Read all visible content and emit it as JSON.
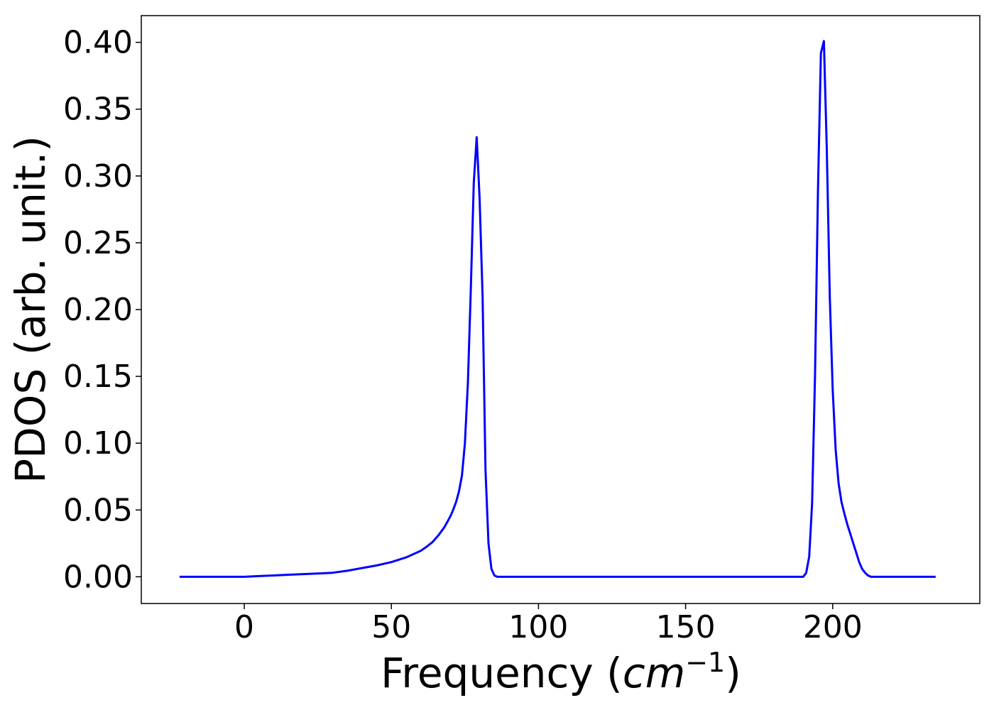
{
  "chart_data": {
    "type": "line",
    "title": "",
    "xlabel": "Frequency (",
    "xlabel_math_base": "cm",
    "xlabel_math_sup": "−1",
    "xlabel_close": ")",
    "ylabel": "PDOS (arb. unit.)",
    "xlim": [
      -35,
      250
    ],
    "ylim": [
      -0.02,
      0.42
    ],
    "x_ticks": [
      0,
      50,
      100,
      150,
      200
    ],
    "x_tick_labels": [
      "0",
      "50",
      "100",
      "150",
      "200"
    ],
    "y_ticks": [
      0.0,
      0.05,
      0.1,
      0.15,
      0.2,
      0.25,
      0.3,
      0.35,
      0.4
    ],
    "y_tick_labels": [
      "0.00",
      "0.05",
      "0.10",
      "0.15",
      "0.20",
      "0.25",
      "0.30",
      "0.35",
      "0.40"
    ],
    "grid": false,
    "legend": "none",
    "series": [
      {
        "color": "#0000ff",
        "x": [
          -22,
          0,
          5,
          10,
          15,
          20,
          25,
          30,
          35,
          40,
          45,
          50,
          55,
          60,
          62,
          64,
          66,
          68,
          70,
          71,
          72,
          73,
          74,
          75,
          76,
          77,
          78,
          79,
          80,
          81,
          82,
          83,
          84,
          85,
          86,
          87,
          88,
          90,
          100,
          150,
          190,
          191,
          192,
          193,
          194,
          195,
          196,
          197,
          198,
          199,
          200,
          201,
          202,
          203,
          204,
          205,
          206,
          207,
          208,
          209,
          210,
          211,
          212,
          213,
          214,
          215,
          216,
          217,
          218,
          220,
          225,
          235
        ],
        "y": [
          0.0,
          0.0,
          0.0005,
          0.001,
          0.0015,
          0.002,
          0.0025,
          0.003,
          0.0045,
          0.0065,
          0.0085,
          0.011,
          0.0145,
          0.0195,
          0.0225,
          0.026,
          0.031,
          0.037,
          0.045,
          0.05,
          0.056,
          0.064,
          0.076,
          0.1,
          0.145,
          0.215,
          0.295,
          0.329,
          0.283,
          0.21,
          0.08,
          0.025,
          0.006,
          0.001,
          0.0,
          0.0,
          0.0,
          0.0,
          0.0,
          0.0,
          0.0,
          0.003,
          0.015,
          0.055,
          0.15,
          0.29,
          0.392,
          0.401,
          0.32,
          0.21,
          0.14,
          0.095,
          0.07,
          0.056,
          0.047,
          0.039,
          0.032,
          0.025,
          0.018,
          0.011,
          0.006,
          0.003,
          0.001,
          0.0,
          0.0,
          0.0,
          0.0,
          0.0,
          0.0,
          0.0,
          0.0,
          0.0
        ]
      }
    ]
  }
}
